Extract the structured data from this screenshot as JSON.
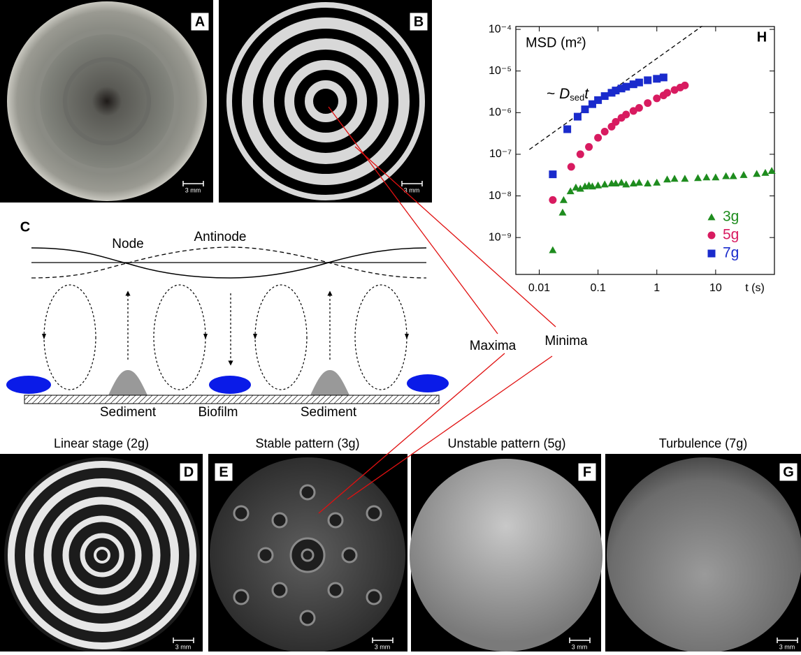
{
  "panels": {
    "A": "A",
    "B": "B",
    "C": "C",
    "D": "D",
    "E": "E",
    "F": "F",
    "G": "G",
    "H": "H"
  },
  "scale_bar": "3 mm",
  "diagram": {
    "node": "Node",
    "antinode": "Antinode",
    "sediment_left": "Sediment",
    "biofilm": "Biofilm",
    "sediment_right": "Sediment"
  },
  "annotations": {
    "maxima": "Maxima",
    "minima": "Minima"
  },
  "stage_titles": {
    "D": "Linear stage (2g)",
    "E": "Stable pattern (3g)",
    "F": "Unstable pattern (5g)",
    "G": "Turbulence (7g)"
  },
  "chart_data": {
    "type": "scatter",
    "y_label": "MSD (m²)",
    "x_label": "t (s)",
    "log_x": true,
    "log_y": true,
    "xlim": [
      0.004,
      100
    ],
    "ylim": [
      1.3e-10,
      0.000117
    ],
    "xticks": [
      0.01,
      0.1,
      1,
      10
    ],
    "yticks": [
      {
        "value": 1e-09,
        "label": "10⁻⁹"
      },
      {
        "value": 1e-08,
        "label": "10⁻⁸"
      },
      {
        "value": 1e-07,
        "label": "10⁻⁷"
      },
      {
        "value": 1e-06,
        "label": "10⁻⁶"
      },
      {
        "value": 1e-05,
        "label": "10⁻⁵"
      },
      {
        "value": 0.0001,
        "label": "10⁻⁴"
      }
    ],
    "legend": "lower right",
    "annotation": {
      "prefix": "~ ",
      "symbol": "D",
      "subscript": "sed",
      "suffix": "t"
    },
    "reference_line": {
      "x": [
        0.0068,
        5.9
      ],
      "values": [
        1.3e-07,
        0.00012
      ]
    },
    "series": [
      {
        "name": "3g",
        "color": "#1e8c1e",
        "marker": "triangle",
        "x": [
          0.017,
          0.025,
          0.026,
          0.034,
          0.042,
          0.05,
          0.06,
          0.07,
          0.08,
          0.1,
          0.13,
          0.17,
          0.2,
          0.25,
          0.3,
          0.4,
          0.5,
          0.7,
          1,
          1.5,
          2,
          3,
          5,
          7,
          10,
          15,
          20,
          30,
          50,
          70,
          90
        ],
        "values": [
          5e-10,
          4e-09,
          8e-09,
          1.3e-08,
          1.6e-08,
          1.5e-08,
          1.7e-08,
          1.8e-08,
          1.7e-08,
          1.8e-08,
          1.9e-08,
          2e-08,
          2e-08,
          2.1e-08,
          1.9e-08,
          2e-08,
          2.1e-08,
          2e-08,
          2.1e-08,
          2.5e-08,
          2.6e-08,
          2.6e-08,
          2.7e-08,
          2.8e-08,
          2.8e-08,
          3e-08,
          3e-08,
          3.2e-08,
          3.4e-08,
          3.6e-08,
          4e-08
        ]
      },
      {
        "name": "5g",
        "color": "#d81b60",
        "marker": "circle",
        "x": [
          0.017,
          0.035,
          0.05,
          0.07,
          0.1,
          0.13,
          0.17,
          0.2,
          0.25,
          0.3,
          0.4,
          0.5,
          0.7,
          1,
          1.3,
          1.5,
          2,
          2.5,
          3
        ],
        "values": [
          8e-09,
          5e-08,
          1e-07,
          1.5e-07,
          2.5e-07,
          3.5e-07,
          4.6e-07,
          6e-07,
          7.5e-07,
          9e-07,
          1.1e-06,
          1.3e-06,
          1.7e-06,
          2.2e-06,
          2.6e-06,
          3e-06,
          3.5e-06,
          4e-06,
          4.5e-06
        ]
      },
      {
        "name": "7g",
        "color": "#1a2bcc",
        "marker": "square",
        "x": [
          0.017,
          0.03,
          0.045,
          0.06,
          0.08,
          0.1,
          0.13,
          0.17,
          0.2,
          0.25,
          0.3,
          0.4,
          0.5,
          0.7,
          1,
          1.3
        ],
        "values": [
          3.3e-08,
          4e-07,
          8e-07,
          1.2e-06,
          1.6e-06,
          2e-06,
          2.5e-06,
          3e-06,
          3.4e-06,
          3.8e-06,
          4.2e-06,
          4.8e-06,
          5.3e-06,
          6e-06,
          6.5e-06,
          7e-06
        ]
      }
    ]
  }
}
